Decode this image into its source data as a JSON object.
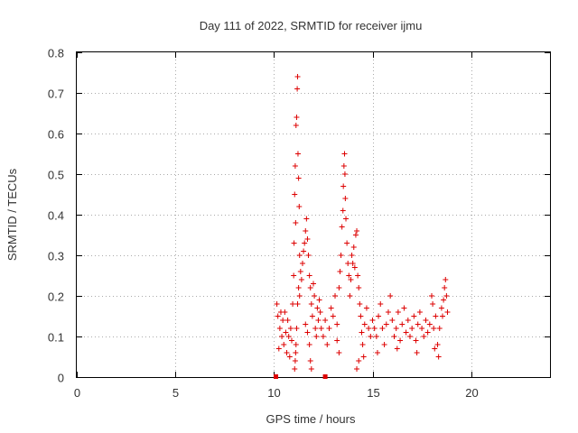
{
  "chart_data": {
    "type": "scatter",
    "title": "Day 111 of 2022, SRMTID for receiver ijmu",
    "xlabel": "GPS time / hours",
    "ylabel": "SRMTID / TECUs",
    "xlim": [
      0,
      24
    ],
    "ylim": [
      0,
      0.8
    ],
    "xticks": [
      0,
      5,
      10,
      15,
      20
    ],
    "yticks": [
      0,
      0.1,
      0.2,
      0.3,
      0.4,
      0.5,
      0.6,
      0.7,
      0.8
    ],
    "grid": true,
    "series": [
      {
        "name": "SRMTID",
        "marker": "plus",
        "color": "#dd0000",
        "points": [
          [
            10.1,
            0.0
          ],
          [
            12.6,
            0.0
          ],
          [
            10.15,
            0.18
          ],
          [
            10.2,
            0.15
          ],
          [
            10.25,
            0.07
          ],
          [
            10.3,
            0.12
          ],
          [
            10.35,
            0.16
          ],
          [
            10.4,
            0.1
          ],
          [
            10.45,
            0.14
          ],
          [
            10.5,
            0.08
          ],
          [
            10.55,
            0.16
          ],
          [
            10.6,
            0.11
          ],
          [
            10.65,
            0.06
          ],
          [
            10.7,
            0.14
          ],
          [
            10.75,
            0.1
          ],
          [
            10.8,
            0.05
          ],
          [
            10.85,
            0.12
          ],
          [
            10.9,
            0.09
          ],
          [
            10.95,
            0.18
          ],
          [
            11.0,
            0.25
          ],
          [
            11.02,
            0.33
          ],
          [
            11.05,
            0.45
          ],
          [
            11.08,
            0.52
          ],
          [
            11.1,
            0.38
          ],
          [
            11.12,
            0.62
          ],
          [
            11.15,
            0.64
          ],
          [
            11.18,
            0.71
          ],
          [
            11.2,
            0.74
          ],
          [
            11.22,
            0.55
          ],
          [
            11.25,
            0.49
          ],
          [
            11.28,
            0.42
          ],
          [
            11.3,
            0.3
          ],
          [
            11.05,
            0.02
          ],
          [
            11.08,
            0.04
          ],
          [
            11.1,
            0.06
          ],
          [
            11.12,
            0.08
          ],
          [
            11.15,
            0.12
          ],
          [
            11.2,
            0.18
          ],
          [
            11.25,
            0.22
          ],
          [
            11.3,
            0.2
          ],
          [
            11.35,
            0.26
          ],
          [
            11.4,
            0.24
          ],
          [
            11.45,
            0.28
          ],
          [
            11.5,
            0.31
          ],
          [
            11.55,
            0.33
          ],
          [
            11.6,
            0.36
          ],
          [
            11.65,
            0.39
          ],
          [
            11.7,
            0.34
          ],
          [
            11.75,
            0.3
          ],
          [
            11.8,
            0.25
          ],
          [
            11.85,
            0.22
          ],
          [
            11.9,
            0.18
          ],
          [
            11.95,
            0.15
          ],
          [
            12.0,
            0.23
          ],
          [
            12.05,
            0.2
          ],
          [
            12.1,
            0.12
          ],
          [
            12.15,
            0.1
          ],
          [
            12.2,
            0.17
          ],
          [
            12.25,
            0.14
          ],
          [
            11.6,
            0.13
          ],
          [
            11.7,
            0.11
          ],
          [
            11.8,
            0.08
          ],
          [
            11.85,
            0.04
          ],
          [
            11.9,
            0.02
          ],
          [
            12.3,
            0.19
          ],
          [
            12.35,
            0.16
          ],
          [
            12.4,
            0.12
          ],
          [
            12.5,
            0.1
          ],
          [
            12.6,
            0.14
          ],
          [
            12.7,
            0.08
          ],
          [
            12.8,
            0.12
          ],
          [
            12.9,
            0.17
          ],
          [
            13.0,
            0.15
          ],
          [
            13.1,
            0.2
          ],
          [
            13.2,
            0.13
          ],
          [
            13.3,
            0.22
          ],
          [
            13.35,
            0.26
          ],
          [
            13.4,
            0.3
          ],
          [
            13.45,
            0.37
          ],
          [
            13.5,
            0.41
          ],
          [
            13.52,
            0.47
          ],
          [
            13.55,
            0.52
          ],
          [
            13.58,
            0.55
          ],
          [
            13.6,
            0.5
          ],
          [
            13.62,
            0.44
          ],
          [
            13.65,
            0.39
          ],
          [
            13.7,
            0.33
          ],
          [
            13.75,
            0.28
          ],
          [
            13.8,
            0.25
          ],
          [
            13.85,
            0.2
          ],
          [
            13.9,
            0.24
          ],
          [
            13.95,
            0.3
          ],
          [
            14.0,
            0.28
          ],
          [
            14.05,
            0.32
          ],
          [
            14.1,
            0.27
          ],
          [
            14.15,
            0.35
          ],
          [
            14.2,
            0.36
          ],
          [
            14.25,
            0.25
          ],
          [
            14.3,
            0.22
          ],
          [
            14.35,
            0.18
          ],
          [
            14.4,
            0.15
          ],
          [
            14.45,
            0.11
          ],
          [
            14.5,
            0.08
          ],
          [
            14.55,
            0.05
          ],
          [
            14.2,
            0.02
          ],
          [
            14.3,
            0.04
          ],
          [
            13.3,
            0.06
          ],
          [
            13.2,
            0.09
          ],
          [
            14.6,
            0.13
          ],
          [
            14.7,
            0.17
          ],
          [
            14.8,
            0.12
          ],
          [
            14.9,
            0.1
          ],
          [
            15.0,
            0.14
          ],
          [
            15.1,
            0.12
          ],
          [
            15.2,
            0.1
          ],
          [
            15.3,
            0.15
          ],
          [
            15.4,
            0.18
          ],
          [
            15.5,
            0.12
          ],
          [
            15.6,
            0.08
          ],
          [
            15.7,
            0.13
          ],
          [
            15.8,
            0.16
          ],
          [
            15.9,
            0.2
          ],
          [
            16.0,
            0.14
          ],
          [
            16.1,
            0.1
          ],
          [
            16.2,
            0.12
          ],
          [
            16.3,
            0.16
          ],
          [
            16.4,
            0.09
          ],
          [
            16.5,
            0.13
          ],
          [
            16.6,
            0.17
          ],
          [
            16.7,
            0.11
          ],
          [
            16.8,
            0.14
          ],
          [
            16.9,
            0.1
          ],
          [
            17.0,
            0.12
          ],
          [
            17.1,
            0.15
          ],
          [
            17.2,
            0.09
          ],
          [
            17.3,
            0.13
          ],
          [
            17.4,
            0.16
          ],
          [
            17.5,
            0.12
          ],
          [
            17.6,
            0.1
          ],
          [
            17.7,
            0.14
          ],
          [
            17.8,
            0.11
          ],
          [
            17.9,
            0.13
          ],
          [
            18.0,
            0.2
          ],
          [
            18.05,
            0.18
          ],
          [
            18.1,
            0.12
          ],
          [
            18.2,
            0.15
          ],
          [
            18.3,
            0.08
          ],
          [
            18.35,
            0.05
          ],
          [
            18.4,
            0.12
          ],
          [
            18.5,
            0.17
          ],
          [
            18.55,
            0.15
          ],
          [
            18.6,
            0.19
          ],
          [
            18.65,
            0.22
          ],
          [
            18.7,
            0.24
          ],
          [
            18.75,
            0.2
          ],
          [
            18.8,
            0.16
          ],
          [
            15.25,
            0.06
          ],
          [
            16.25,
            0.07
          ],
          [
            17.25,
            0.06
          ],
          [
            18.15,
            0.07
          ]
        ]
      }
    ]
  }
}
